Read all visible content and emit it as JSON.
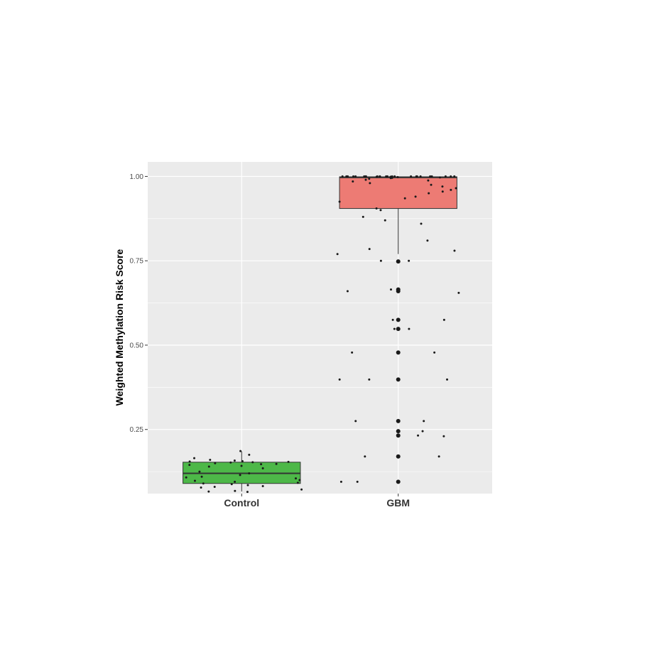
{
  "chart_data": {
    "type": "box",
    "title": "",
    "xlabel": "",
    "ylabel": "Weighted Methylation Risk Score",
    "ylim": [
      0.06,
      1.043
    ],
    "y_ticks": [
      0.25,
      0.5,
      0.75,
      1.0
    ],
    "y_tick_labels": [
      "0.25",
      "0.50",
      "0.75",
      "1.00"
    ],
    "grid": true,
    "legend": "none",
    "categories": [
      "Control",
      "GBM"
    ],
    "colors": {
      "Control": "#4db848",
      "GBM": "#ed7b74",
      "panel_background": "#ebebeb",
      "grid_line": "#ffffff",
      "point": "#1a1a1a"
    },
    "boxes": [
      {
        "category": "Control",
        "min": 0.066,
        "q1": 0.09,
        "median": 0.12,
        "q3": 0.153,
        "max": 0.185,
        "outliers": []
      },
      {
        "category": "GBM",
        "min": 0.77,
        "q1": 0.905,
        "median": 0.997,
        "q3": 0.999,
        "max": 1.0,
        "outliers": [
          0.748,
          0.665,
          0.66,
          0.575,
          0.548,
          0.478,
          0.398,
          0.275,
          0.245,
          0.232,
          0.17,
          0.095
        ]
      }
    ],
    "points": [
      {
        "category": "Control",
        "values": [
          0.186,
          0.175,
          0.165,
          0.16,
          0.158,
          0.156,
          0.155,
          0.154,
          0.153,
          0.152,
          0.15,
          0.148,
          0.147,
          0.145,
          0.142,
          0.14,
          0.135,
          0.125,
          0.12,
          0.115,
          0.11,
          0.108,
          0.105,
          0.1,
          0.098,
          0.095,
          0.092,
          0.09,
          0.088,
          0.085,
          0.082,
          0.08,
          0.078,
          0.072,
          0.068,
          0.066,
          0.065
        ]
      },
      {
        "category": "GBM",
        "values": [
          1.0,
          1.0,
          1.0,
          1.0,
          1.0,
          1.0,
          1.0,
          1.0,
          1.0,
          1.0,
          1.0,
          1.0,
          1.0,
          1.0,
          1.0,
          1.0,
          1.0,
          1.0,
          1.0,
          1.0,
          1.0,
          1.0,
          1.0,
          1.0,
          0.999,
          0.999,
          0.998,
          0.998,
          0.997,
          0.996,
          0.995,
          0.993,
          0.99,
          0.988,
          0.985,
          0.98,
          0.975,
          0.97,
          0.965,
          0.96,
          0.955,
          0.95,
          0.94,
          0.935,
          0.925,
          0.905,
          0.9,
          0.88,
          0.87,
          0.86,
          0.81,
          0.785,
          0.78,
          0.77,
          0.75,
          0.75,
          0.665,
          0.66,
          0.655,
          0.575,
          0.575,
          0.548,
          0.548,
          0.478,
          0.478,
          0.398,
          0.398,
          0.398,
          0.275,
          0.275,
          0.245,
          0.232,
          0.23,
          0.17,
          0.17,
          0.095,
          0.095
        ]
      }
    ]
  }
}
